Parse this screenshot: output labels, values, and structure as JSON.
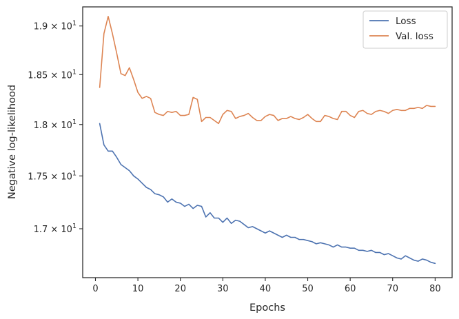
{
  "chart_data": {
    "type": "line",
    "xlabel": "Epochs",
    "ylabel": "Negative log-likelihood",
    "xlim": [
      -3,
      84
    ],
    "ylim": [
      16.55,
      19.2
    ],
    "y_scale": "log",
    "grid": false,
    "legend_position": "top-right",
    "x_ticks": [
      {
        "value": 0,
        "label": "0"
      },
      {
        "value": 10,
        "label": "10"
      },
      {
        "value": 20,
        "label": "20"
      },
      {
        "value": 30,
        "label": "30"
      },
      {
        "value": 40,
        "label": "40"
      },
      {
        "value": 50,
        "label": "50"
      },
      {
        "value": 60,
        "label": "60"
      },
      {
        "value": 70,
        "label": "70"
      },
      {
        "value": 80,
        "label": "80"
      }
    ],
    "y_ticks": [
      {
        "value": 17.0,
        "mantissa": "1.7",
        "exponent": "1"
      },
      {
        "value": 17.5,
        "mantissa": "1.75",
        "exponent": "1"
      },
      {
        "value": 18.0,
        "mantissa": "1.8",
        "exponent": "1"
      },
      {
        "value": 18.5,
        "mantissa": "1.85",
        "exponent": "1"
      },
      {
        "value": 19.0,
        "mantissa": "1.9",
        "exponent": "1"
      }
    ],
    "x": [
      1,
      2,
      3,
      4,
      5,
      6,
      7,
      8,
      9,
      10,
      11,
      12,
      13,
      14,
      15,
      16,
      17,
      18,
      19,
      20,
      21,
      22,
      23,
      24,
      25,
      26,
      27,
      28,
      29,
      30,
      31,
      32,
      33,
      34,
      35,
      36,
      37,
      38,
      39,
      40,
      41,
      42,
      43,
      44,
      45,
      46,
      47,
      48,
      49,
      50,
      51,
      52,
      53,
      54,
      55,
      56,
      57,
      58,
      59,
      60,
      61,
      62,
      63,
      64,
      65,
      66,
      67,
      68,
      69,
      70,
      71,
      72,
      73,
      74,
      75,
      76,
      77,
      78,
      79,
      80
    ],
    "series": [
      {
        "name": "Loss",
        "color": "#4c72b0",
        "values": [
          18.01,
          17.8,
          17.74,
          17.74,
          17.68,
          17.61,
          17.58,
          17.55,
          17.5,
          17.47,
          17.43,
          17.39,
          17.37,
          17.33,
          17.32,
          17.3,
          17.25,
          17.28,
          17.25,
          17.24,
          17.21,
          17.23,
          17.19,
          17.22,
          17.21,
          17.11,
          17.15,
          17.1,
          17.1,
          17.06,
          17.1,
          17.05,
          17.08,
          17.07,
          17.04,
          17.01,
          17.02,
          17.0,
          16.98,
          16.96,
          16.98,
          16.96,
          16.94,
          16.92,
          16.94,
          16.92,
          16.92,
          16.9,
          16.9,
          16.89,
          16.88,
          16.86,
          16.87,
          16.86,
          16.85,
          16.83,
          16.85,
          16.83,
          16.83,
          16.82,
          16.82,
          16.8,
          16.8,
          16.79,
          16.8,
          16.78,
          16.78,
          16.76,
          16.77,
          16.75,
          16.73,
          16.72,
          16.75,
          16.73,
          16.71,
          16.7,
          16.72,
          16.71,
          16.69,
          16.68
        ]
      },
      {
        "name": "Val. loss",
        "color": "#dd8452",
        "values": [
          18.37,
          18.92,
          19.1,
          18.92,
          18.72,
          18.51,
          18.49,
          18.57,
          18.45,
          18.32,
          18.26,
          18.28,
          18.26,
          18.12,
          18.1,
          18.09,
          18.13,
          18.12,
          18.13,
          18.09,
          18.09,
          18.1,
          18.27,
          18.25,
          18.03,
          18.07,
          18.07,
          18.04,
          18.01,
          18.1,
          18.14,
          18.13,
          18.06,
          18.08,
          18.09,
          18.11,
          18.07,
          18.04,
          18.04,
          18.08,
          18.1,
          18.09,
          18.04,
          18.06,
          18.06,
          18.08,
          18.06,
          18.05,
          18.07,
          18.1,
          18.06,
          18.03,
          18.03,
          18.09,
          18.08,
          18.06,
          18.05,
          18.13,
          18.13,
          18.09,
          18.07,
          18.13,
          18.14,
          18.11,
          18.1,
          18.13,
          18.14,
          18.13,
          18.11,
          18.14,
          18.15,
          18.14,
          18.14,
          18.16,
          18.16,
          18.17,
          18.16,
          18.19,
          18.18,
          18.18
        ]
      }
    ]
  }
}
